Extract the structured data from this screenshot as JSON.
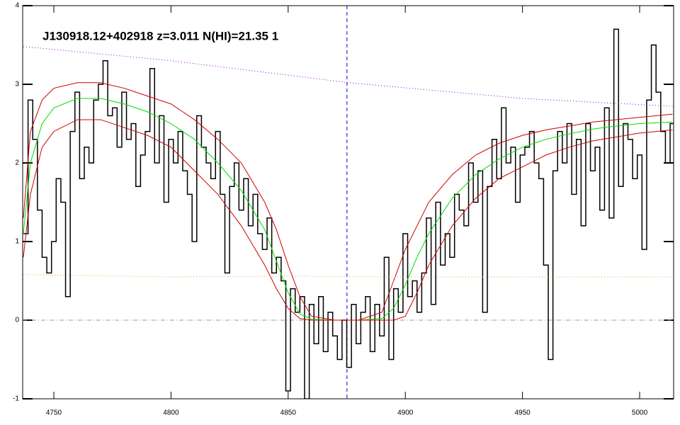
{
  "chart_data": {
    "type": "line",
    "title": "J130918.12+402918 z=3.011 N(HI)=21.35 1",
    "xlim": [
      4736.7,
      5014.5
    ],
    "ylim": [
      -1,
      4
    ],
    "xticks": [
      4750,
      4800,
      4850,
      4900,
      4950,
      5000
    ],
    "yticks": [
      -1,
      0,
      1,
      2,
      3,
      4
    ],
    "vline": {
      "value": 4875.1,
      "color": "#0000cc"
    },
    "hline": {
      "value": 0,
      "color": "#999999"
    },
    "series": [
      {
        "style": "steps",
        "color": "#000000",
        "x": [
          4738,
          4740,
          4742,
          4744,
          4746,
          4748,
          4750,
          4752,
          4754,
          4756,
          4758,
          4760,
          4762,
          4764,
          4766,
          4768,
          4770,
          4772,
          4774,
          4776,
          4778,
          4780,
          4782,
          4784,
          4786,
          4788,
          4790,
          4792,
          4794,
          4796,
          4798,
          4800,
          4802,
          4804,
          4806,
          4808,
          4810,
          4812,
          4814,
          4816,
          4818,
          4820,
          4822,
          4824,
          4826,
          4828,
          4830,
          4832,
          4834,
          4836,
          4838,
          4840,
          4842,
          4844,
          4846,
          4848,
          4850,
          4852,
          4854,
          4856,
          4858,
          4860,
          4862,
          4864,
          4866,
          4868,
          4870,
          4872,
          4874,
          4876,
          4878,
          4880,
          4882,
          4884,
          4886,
          4888,
          4890,
          4892,
          4894,
          4896,
          4898,
          4900,
          4902,
          4904,
          4906,
          4908,
          4910,
          4912,
          4914,
          4916,
          4918,
          4920,
          4922,
          4924,
          4926,
          4928,
          4930,
          4932,
          4934,
          4936,
          4938,
          4940,
          4942,
          4944,
          4946,
          4948,
          4950,
          4952,
          4954,
          4956,
          4958,
          4960,
          4962,
          4964,
          4966,
          4968,
          4970,
          4972,
          4974,
          4976,
          4978,
          4980,
          4982,
          4984,
          4986,
          4988,
          4990,
          4992,
          4994,
          4996,
          4998,
          5000,
          5002,
          5004,
          5006,
          5008,
          5010,
          5012,
          5014
        ],
        "values": [
          1.1,
          2.8,
          2.3,
          1.4,
          0.8,
          0.6,
          1.0,
          1.8,
          1.5,
          0.3,
          2.4,
          2.9,
          1.8,
          2.2,
          2.0,
          2.8,
          3.0,
          3.3,
          2.6,
          2.7,
          2.2,
          2.9,
          2.3,
          2.5,
          1.7,
          2.1,
          2.4,
          3.2,
          2.0,
          2.6,
          1.5,
          2.3,
          2.0,
          2.4,
          1.9,
          1.6,
          1.0,
          2.6,
          2.2,
          2.0,
          1.8,
          2.4,
          1.6,
          0.6,
          1.7,
          2.0,
          1.4,
          1.8,
          1.2,
          1.6,
          1.1,
          0.9,
          1.3,
          0.6,
          0.8,
          0.5,
          -0.9,
          0.4,
          0.1,
          0.3,
          -1.0,
          0.2,
          -0.3,
          0.3,
          -0.4,
          0.1,
          -0.2,
          -0.5,
          0.0,
          -0.6,
          0.2,
          -0.3,
          0.1,
          0.3,
          -0.4,
          0.2,
          -0.2,
          0.8,
          -0.5,
          0.4,
          0.1,
          1.1,
          0.3,
          0.5,
          0.1,
          0.6,
          1.3,
          0.2,
          1.5,
          0.7,
          1.1,
          0.8,
          1.6,
          1.4,
          1.2,
          2.0,
          1.5,
          1.9,
          0.1,
          1.7,
          2.3,
          1.8,
          2.7,
          2.0,
          2.2,
          1.5,
          2.1,
          2.2,
          2.4,
          2.0,
          1.8,
          0.7,
          -0.5,
          1.9,
          2.4,
          2.0,
          2.5,
          1.6,
          2.3,
          1.2,
          2.5,
          1.9,
          2.2,
          1.4,
          2.7,
          1.3,
          3.7,
          1.7,
          2.5,
          2.3,
          1.8,
          2.1,
          0.9,
          2.8,
          3.5,
          2.9,
          2.4,
          2.0,
          2.5
        ]
      },
      {
        "style": "solid",
        "color": "#00dd00",
        "x": [
          4737,
          4740,
          4745,
          4750,
          4760,
          4770,
          4780,
          4790,
          4800,
          4810,
          4820,
          4830,
          4840,
          4845,
          4850,
          4855,
          4860,
          4870,
          4880,
          4890,
          4895,
          4900,
          4905,
          4910,
          4920,
          4930,
          4940,
          4950,
          4960,
          4970,
          4980,
          4990,
          5000,
          5014
        ],
        "values": [
          1.1,
          2.0,
          2.5,
          2.7,
          2.82,
          2.82,
          2.75,
          2.65,
          2.5,
          2.3,
          2.0,
          1.65,
          1.15,
          0.75,
          0.35,
          0.08,
          0.01,
          0,
          0,
          0.02,
          0.15,
          0.45,
          0.8,
          1.1,
          1.55,
          1.85,
          2.05,
          2.2,
          2.3,
          2.37,
          2.43,
          2.47,
          2.5,
          2.52
        ]
      },
      {
        "style": "solid",
        "color": "#cc0000",
        "x": [
          4737,
          4740,
          4745,
          4750,
          4760,
          4770,
          4780,
          4790,
          4800,
          4810,
          4820,
          4830,
          4840,
          4845,
          4850,
          4855,
          4860,
          4870,
          4880,
          4890,
          4895,
          4900,
          4905,
          4910,
          4920,
          4930,
          4940,
          4950,
          4960,
          4970,
          4980,
          4990,
          5000,
          5014
        ],
        "values": [
          1.3,
          2.4,
          2.8,
          2.95,
          3.02,
          3.02,
          2.95,
          2.85,
          2.75,
          2.55,
          2.3,
          2.0,
          1.5,
          1.15,
          0.7,
          0.3,
          0.05,
          0,
          0,
          0.1,
          0.5,
          0.9,
          1.2,
          1.5,
          1.85,
          2.1,
          2.25,
          2.35,
          2.42,
          2.47,
          2.52,
          2.55,
          2.58,
          2.62
        ]
      },
      {
        "style": "solid",
        "color": "#cc0000",
        "x": [
          4737,
          4740,
          4745,
          4750,
          4760,
          4770,
          4780,
          4790,
          4800,
          4810,
          4820,
          4830,
          4840,
          4845,
          4850,
          4855,
          4860,
          4870,
          4880,
          4890,
          4895,
          4900,
          4905,
          4910,
          4920,
          4930,
          4940,
          4950,
          4960,
          4970,
          4980,
          4990,
          5000,
          5014
        ],
        "values": [
          0.8,
          1.6,
          2.2,
          2.4,
          2.55,
          2.55,
          2.45,
          2.35,
          2.2,
          1.9,
          1.6,
          1.2,
          0.7,
          0.4,
          0.15,
          0.02,
          0,
          0,
          0,
          0,
          0,
          0.05,
          0.35,
          0.7,
          1.2,
          1.55,
          1.8,
          1.95,
          2.1,
          2.2,
          2.28,
          2.33,
          2.38,
          2.42
        ]
      },
      {
        "style": "dotted",
        "color": "#9900cc",
        "x": [
          4737,
          4800,
          4876,
          4950,
          5014
        ],
        "values": [
          3.48,
          3.3,
          3.02,
          2.82,
          2.72
        ]
      },
      {
        "style": "dotted",
        "color": "#ff9933",
        "x": [
          4737,
          4800,
          4850,
          4900,
          4950,
          5014
        ],
        "values": [
          0.58,
          0.55,
          0.56,
          0.55,
          0.55,
          0.55
        ]
      }
    ]
  }
}
